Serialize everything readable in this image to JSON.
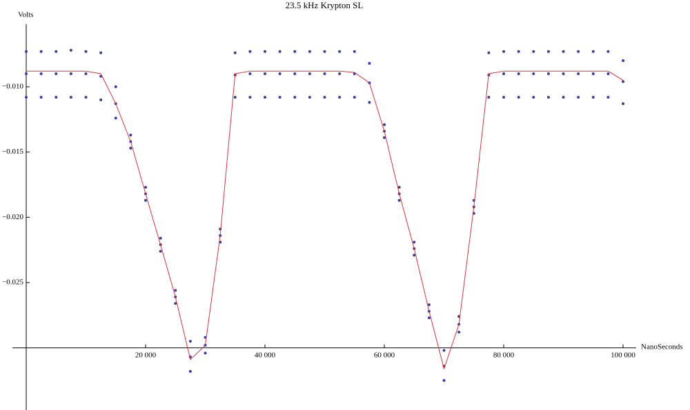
{
  "chart_data": {
    "type": "scatter",
    "title": "23.5 kHz Krypton SL",
    "x_label": "NanoSeconds",
    "y_label": "Volts",
    "x": [
      0,
      2500,
      5000,
      7500,
      10000,
      12500,
      15000,
      17500,
      20000,
      22500,
      25000,
      27500,
      30000,
      32500,
      35000,
      37500,
      40000,
      42500,
      45000,
      47500,
      50000,
      52500,
      55000,
      57500,
      60000,
      62500,
      65000,
      67500,
      70000,
      72500,
      75000,
      77500,
      80000,
      82500,
      85000,
      87500,
      90000,
      92500,
      95000,
      97500,
      100000
    ],
    "series": [
      {
        "type": "scatter",
        "color": "#3a3d9c",
        "values": [
          -0.0073,
          -0.0073,
          -0.0073,
          -0.0072,
          -0.0073,
          -0.0074,
          -0.01,
          -0.0137,
          -0.0177,
          -0.0216,
          -0.0256,
          -0.0295,
          -0.0292,
          -0.0209,
          -0.0074,
          -0.0073,
          -0.0073,
          -0.0073,
          -0.0073,
          -0.0073,
          -0.0073,
          -0.0073,
          -0.0073,
          -0.0082,
          -0.0129,
          -0.0177,
          -0.0219,
          -0.0267,
          -0.0302,
          -0.0276,
          -0.0187,
          -0.0074,
          -0.0073,
          -0.0073,
          -0.0073,
          -0.0073,
          -0.0073,
          -0.0073,
          -0.0073,
          -0.0073,
          -0.008
        ]
      },
      {
        "type": "scatter",
        "color": "#3a3d9c",
        "values": [
          -0.009,
          -0.009,
          -0.009,
          -0.009,
          -0.009,
          -0.0092,
          -0.0113,
          -0.0142,
          -0.0182,
          -0.0221,
          -0.0261,
          -0.0307,
          -0.0298,
          -0.0214,
          -0.0091,
          -0.009,
          -0.009,
          -0.009,
          -0.009,
          -0.009,
          -0.009,
          -0.009,
          -0.009,
          -0.0097,
          -0.0134,
          -0.0182,
          -0.0224,
          -0.0272,
          -0.0314,
          -0.0282,
          -0.0192,
          -0.0091,
          -0.009,
          -0.009,
          -0.009,
          -0.009,
          -0.009,
          -0.009,
          -0.009,
          -0.009,
          -0.0096
        ]
      },
      {
        "type": "scatter",
        "color": "#3a3d9c",
        "values": [
          -0.0108,
          -0.0108,
          -0.0108,
          -0.0108,
          -0.0108,
          -0.011,
          -0.0124,
          -0.0147,
          -0.0187,
          -0.0226,
          -0.0266,
          -0.0318,
          -0.0304,
          -0.0219,
          -0.0108,
          -0.0108,
          -0.0108,
          -0.0108,
          -0.0108,
          -0.0108,
          -0.0108,
          -0.0108,
          -0.0108,
          -0.0112,
          -0.0139,
          -0.0187,
          -0.0229,
          -0.0277,
          -0.0325,
          -0.0288,
          -0.0197,
          -0.0108,
          -0.0108,
          -0.0108,
          -0.0108,
          -0.0108,
          -0.0108,
          -0.0108,
          -0.0108,
          -0.0108,
          -0.0113
        ]
      },
      {
        "type": "line",
        "color": "#d8323f",
        "values": [
          -0.0088,
          -0.0088,
          -0.0088,
          -0.0088,
          -0.0088,
          -0.009,
          -0.0113,
          -0.0142,
          -0.0182,
          -0.0221,
          -0.0261,
          -0.0309,
          -0.0298,
          -0.0214,
          -0.009,
          -0.0088,
          -0.0088,
          -0.0088,
          -0.0088,
          -0.0088,
          -0.0088,
          -0.0088,
          -0.0089,
          -0.0097,
          -0.0134,
          -0.0182,
          -0.0224,
          -0.0272,
          -0.0316,
          -0.0282,
          -0.0192,
          -0.009,
          -0.0088,
          -0.0088,
          -0.0088,
          -0.0088,
          -0.0088,
          -0.0088,
          -0.0088,
          -0.0088,
          -0.0095
        ]
      }
    ],
    "xlim": [
      0,
      100000
    ],
    "ylim": [
      -0.0345,
      -0.0052
    ],
    "axis_origin": [
      0,
      -0.03
    ],
    "xticks": [
      {
        "value": 20000,
        "label": "20 000"
      },
      {
        "value": 40000,
        "label": "40 000"
      },
      {
        "value": 60000,
        "label": "60 000"
      },
      {
        "value": 80000,
        "label": "80 000"
      },
      {
        "value": 100000,
        "label": "100 000"
      }
    ],
    "yticks": [
      {
        "value": -0.01,
        "label": "−0.010"
      },
      {
        "value": -0.015,
        "label": "−0.015"
      },
      {
        "value": -0.02,
        "label": "−0.020"
      },
      {
        "value": -0.025,
        "label": "−0.025"
      }
    ],
    "grid": false
  }
}
